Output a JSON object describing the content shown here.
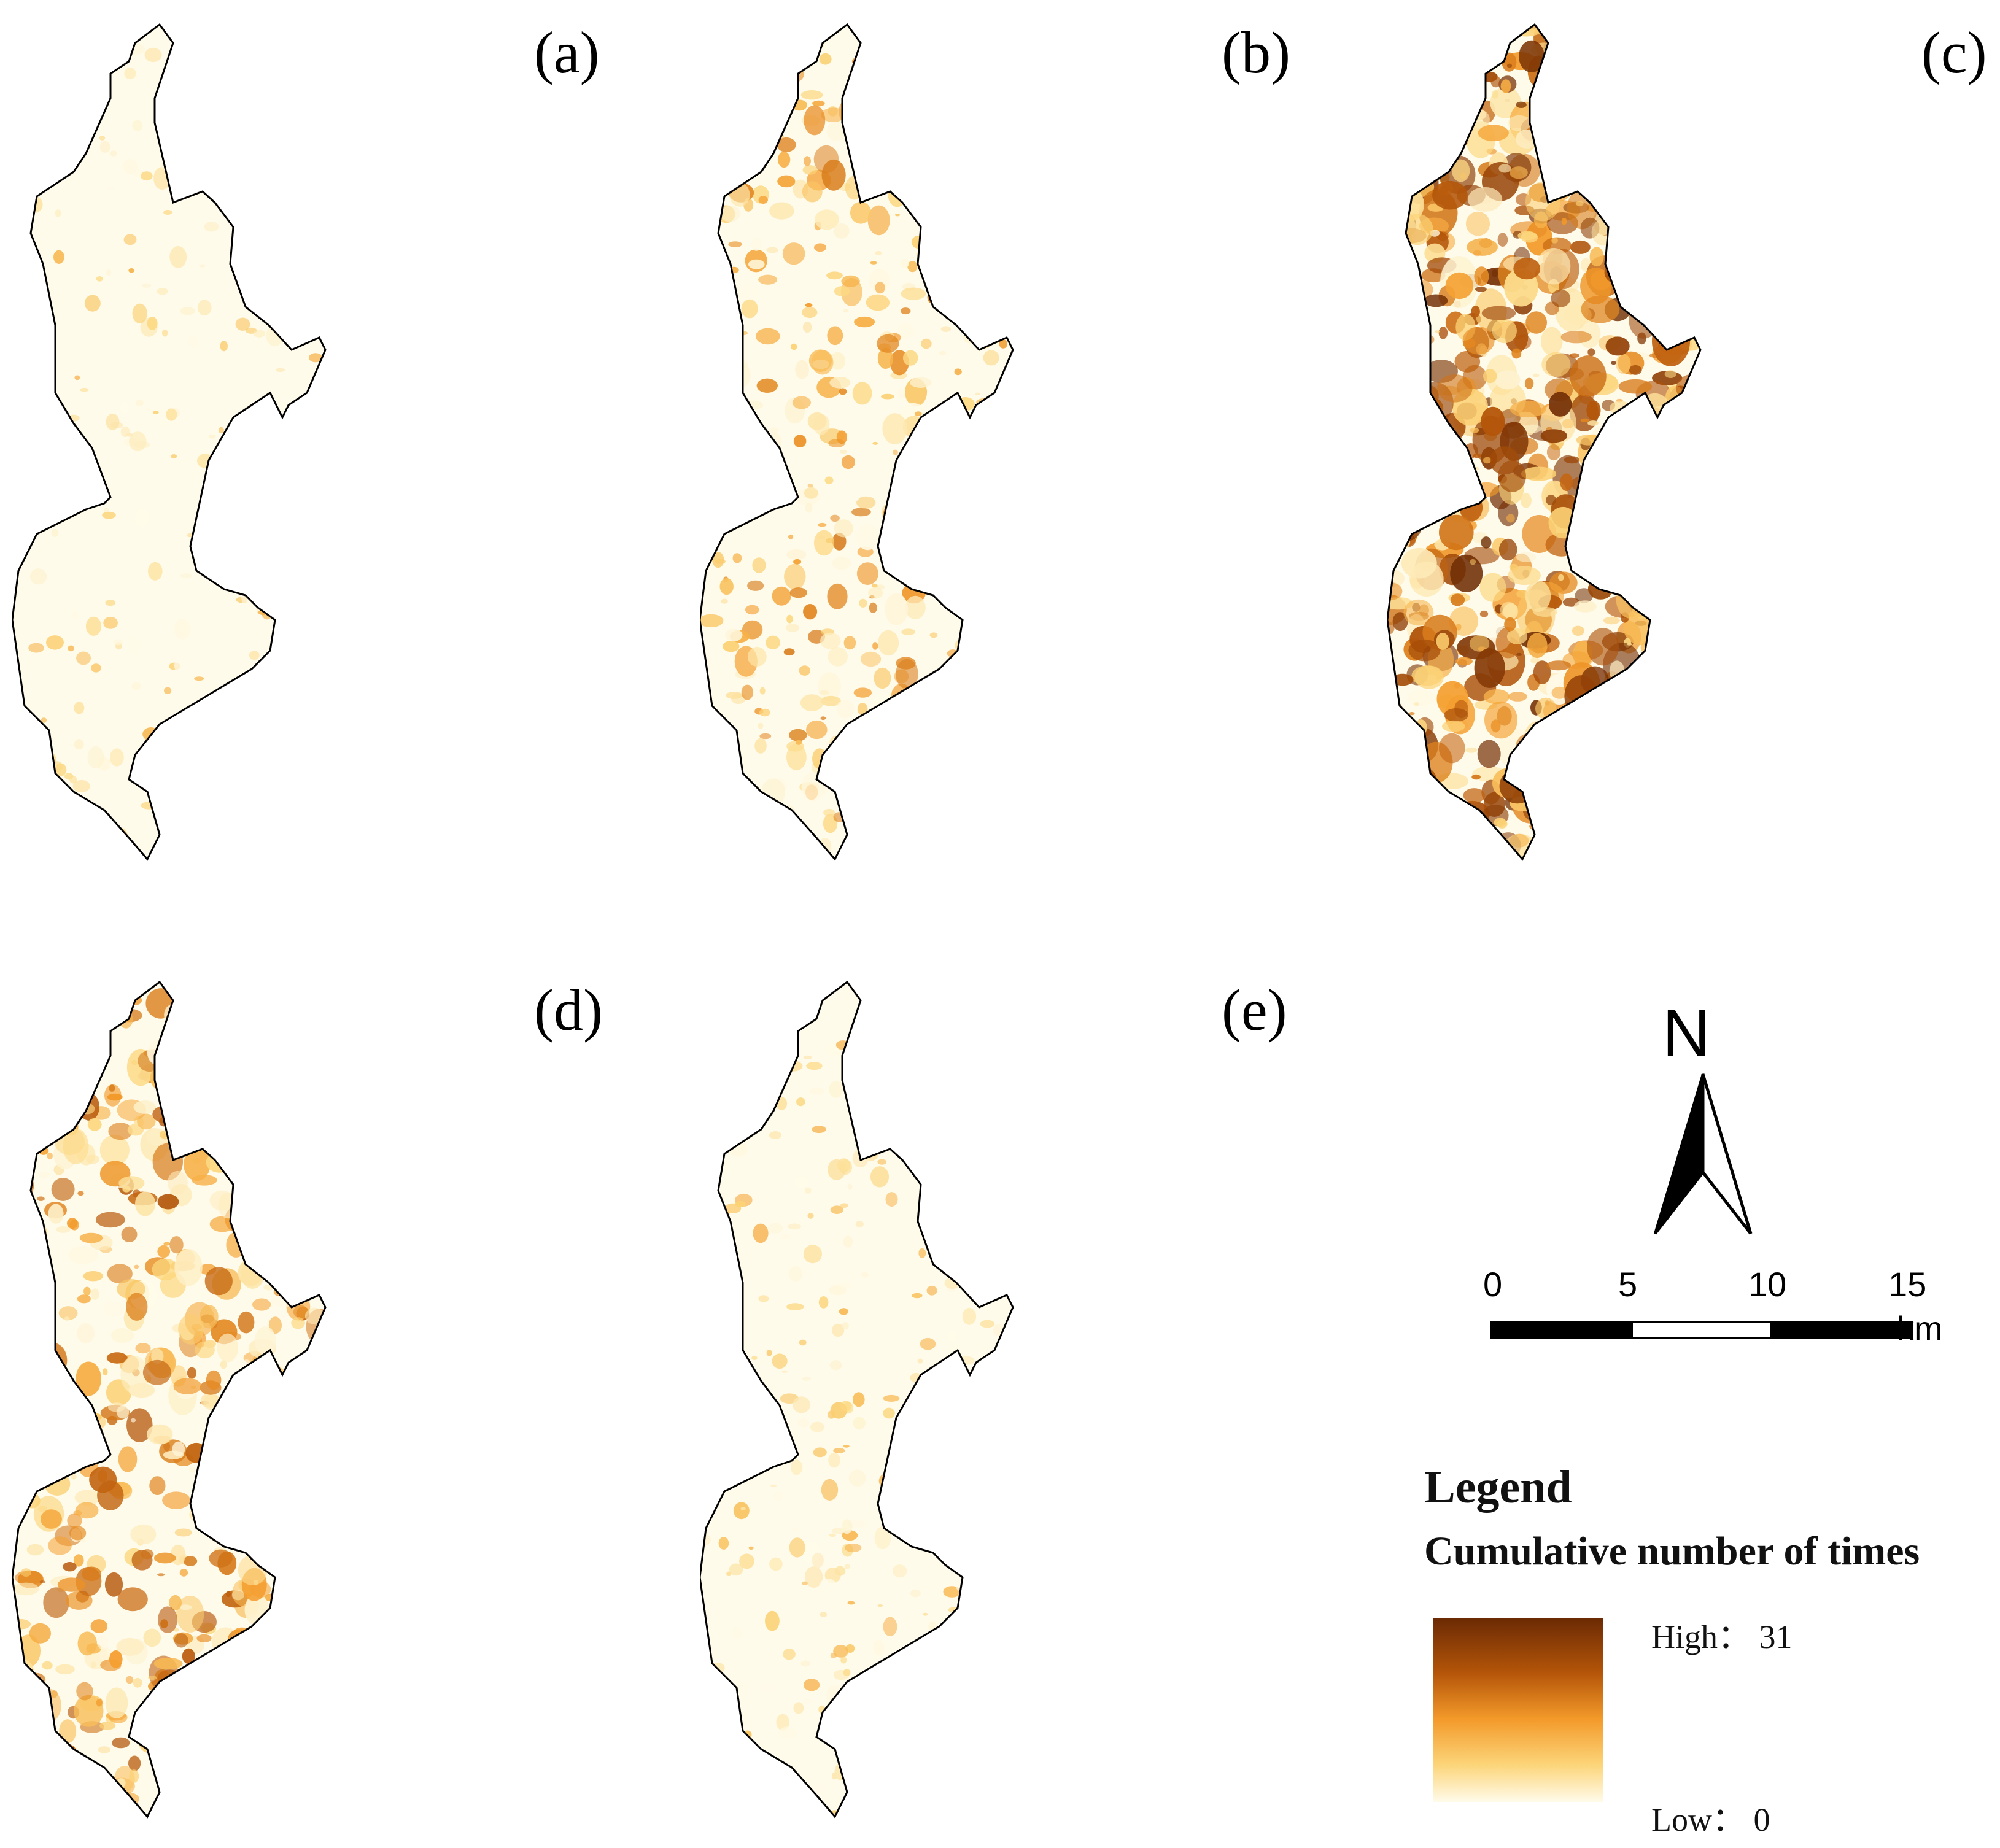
{
  "panels": [
    {
      "id": "a",
      "label": "(a)",
      "intensity": 0.08
    },
    {
      "id": "b",
      "label": "(b)",
      "intensity": 0.35
    },
    {
      "id": "c",
      "label": "(c)",
      "intensity": 0.85
    },
    {
      "id": "d",
      "label": "(d)",
      "intensity": 0.55
    },
    {
      "id": "e",
      "label": "(e)",
      "intensity": 0.12
    }
  ],
  "north_arrow": {
    "letter": "N"
  },
  "scale_bar": {
    "ticks": [
      "0",
      "5",
      "10",
      "15"
    ],
    "unit": "km"
  },
  "legend": {
    "title": "Legend",
    "subtitle": "Cumulative number of times",
    "high_label": "High： 31",
    "low_label": "Low： 0",
    "high_value": 31,
    "low_value": 0
  },
  "colors": {
    "high": "#6b2a04",
    "mid": "#f39a2a",
    "low": "#fffbea",
    "outline": "#000000"
  }
}
